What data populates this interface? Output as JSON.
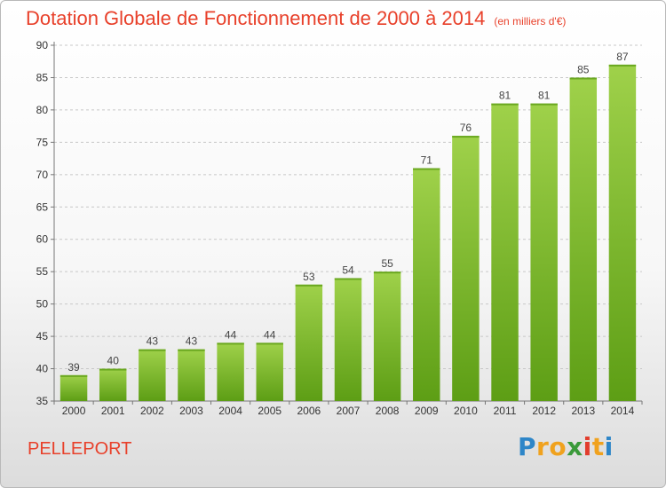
{
  "title": "Dotation Globale de Fonctionnement de 2000 à 2014",
  "unit": "(en milliers d'€)",
  "commune": "PELLEPORT",
  "logo": {
    "letters": [
      "P",
      "r",
      "o",
      "x",
      "i",
      "t",
      "i"
    ],
    "colors": [
      "#2e86c8",
      "#f0a21e",
      "#f0a21e",
      "#3a9a3a",
      "#e23d2d",
      "#f0a21e",
      "#2e86c8"
    ]
  },
  "colors": {
    "title": "#e8402a",
    "bar_light": "#9fd14a",
    "bar_dark": "#5d9e15"
  },
  "chart_data": {
    "type": "bar",
    "title": "Dotation Globale de Fonctionnement de 2000 à 2014",
    "subtitle": "(en milliers d'€)",
    "categories": [
      "2000",
      "2001",
      "2002",
      "2003",
      "2004",
      "2005",
      "2006",
      "2007",
      "2008",
      "2009",
      "2010",
      "2011",
      "2012",
      "2013",
      "2014"
    ],
    "values": [
      39,
      40,
      43,
      43,
      44,
      44,
      53,
      54,
      55,
      71,
      76,
      81,
      81,
      85,
      87
    ],
    "ylim": [
      35,
      90
    ],
    "yticks": [
      35,
      40,
      45,
      50,
      55,
      60,
      65,
      70,
      75,
      80,
      85,
      90
    ],
    "grid": true,
    "data_labels": true
  }
}
